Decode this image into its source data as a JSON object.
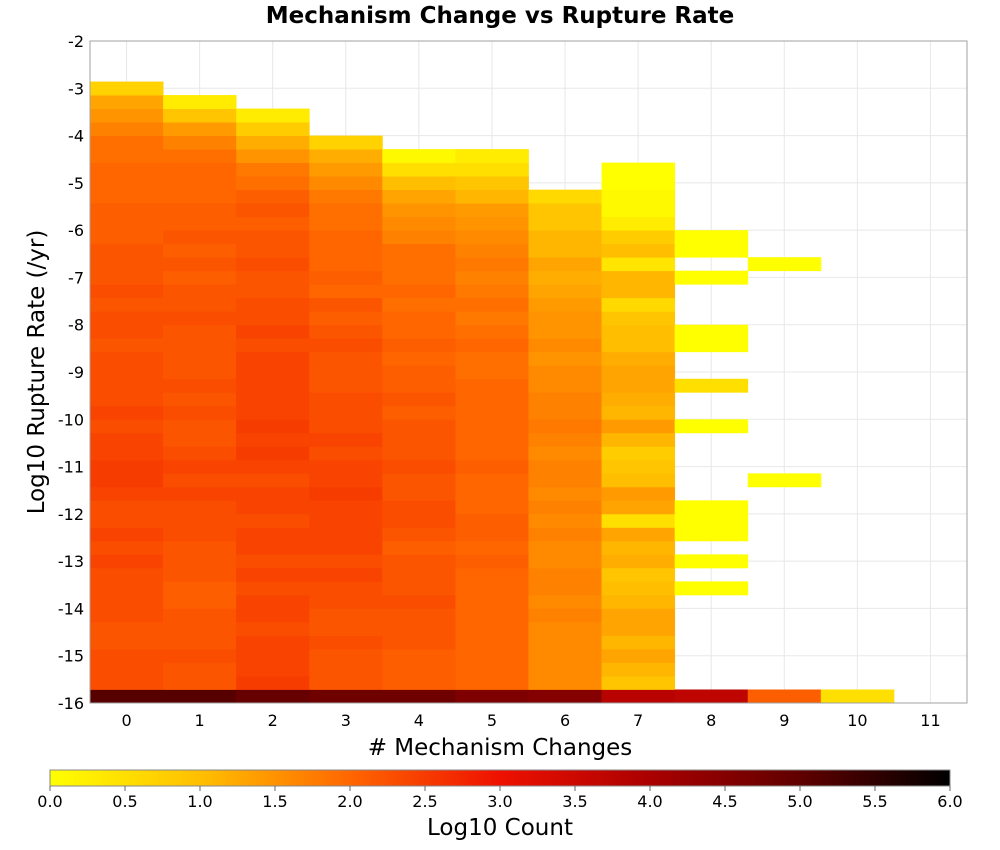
{
  "chart_data": {
    "type": "heatmap",
    "title": "Mechanism Change vs Rupture Rate",
    "xlabel": "# Mechanism Changes",
    "ylabel": "Log10 Rupture Rate (/yr)",
    "xlim": [
      -0.5,
      11.5
    ],
    "ylim": [
      -16,
      -2
    ],
    "x_ticks": [
      "0",
      "1",
      "2",
      "3",
      "4",
      "5",
      "6",
      "7",
      "8",
      "9",
      "10",
      "11"
    ],
    "y_ticks": [
      "-2",
      "-3",
      "-4",
      "-5",
      "-6",
      "-7",
      "-8",
      "-9",
      "-10",
      "-11",
      "-12",
      "-13",
      "-14",
      "-15",
      "-16"
    ],
    "grid": true,
    "y_bin_width": 0.2857,
    "colorbar": {
      "label": "Log10 Count",
      "range": [
        0.0,
        6.0
      ],
      "ticks": [
        "0.0",
        "0.5",
        "1.0",
        "1.5",
        "2.0",
        "2.5",
        "3.0",
        "3.5",
        "4.0",
        "4.5",
        "5.0",
        "5.5",
        "6.0"
      ],
      "stops": [
        {
          "value": 0.0,
          "color": "#ffff00"
        },
        {
          "value": 1.0,
          "color": "#ffbf00"
        },
        {
          "value": 2.0,
          "color": "#ff6600"
        },
        {
          "value": 3.0,
          "color": "#ee1100"
        },
        {
          "value": 4.0,
          "color": "#aa0000"
        },
        {
          "value": 5.0,
          "color": "#600000"
        },
        {
          "value": 6.0,
          "color": "#000000"
        }
      ]
    },
    "columns": [
      {
        "x": 0,
        "values": [
          5.1,
          2.3,
          2.3,
          2.3,
          2.2,
          2.2,
          2.3,
          2.3,
          2.3,
          2.3,
          2.4,
          2.3,
          2.4,
          2.3,
          2.3,
          2.4,
          2.5,
          2.5,
          2.4,
          2.4,
          2.3,
          2.4,
          2.3,
          2.3,
          2.3,
          2.3,
          2.2,
          2.3,
          2.3,
          2.2,
          2.3,
          2.2,
          2.2,
          2.2,
          2.1,
          2.1,
          2.1,
          2.0,
          2.0,
          2.0,
          1.9,
          1.9,
          1.7,
          1.5,
          1.3,
          0.7
        ]
      },
      {
        "x": 1,
        "values": [
          5.1,
          2.2,
          2.2,
          2.3,
          2.2,
          2.2,
          2.2,
          2.1,
          2.1,
          2.2,
          2.2,
          2.2,
          2.3,
          2.3,
          2.3,
          2.4,
          2.3,
          2.4,
          2.3,
          2.2,
          2.2,
          2.3,
          2.2,
          2.3,
          2.2,
          2.2,
          2.2,
          2.2,
          2.3,
          2.2,
          2.2,
          2.1,
          2.2,
          2.1,
          2.2,
          2.1,
          2.1,
          2.0,
          2.0,
          2.0,
          1.9,
          1.7,
          1.4,
          0.9,
          0.3
        ]
      },
      {
        "x": 2,
        "values": [
          4.9,
          2.5,
          2.4,
          2.4,
          2.4,
          2.3,
          2.4,
          2.4,
          2.3,
          2.4,
          2.3,
          2.4,
          2.4,
          2.3,
          2.4,
          2.4,
          2.3,
          2.4,
          2.5,
          2.4,
          2.5,
          2.4,
          2.4,
          2.4,
          2.4,
          2.4,
          2.3,
          2.4,
          2.3,
          2.3,
          2.2,
          2.2,
          2.3,
          2.2,
          2.2,
          2.1,
          2.2,
          2.1,
          1.9,
          1.8,
          1.5,
          1.2,
          0.8,
          0.3
        ]
      },
      {
        "x": 3,
        "values": [
          4.8,
          2.2,
          2.2,
          2.2,
          2.3,
          2.2,
          2.2,
          2.3,
          2.3,
          2.4,
          2.3,
          2.4,
          2.4,
          2.4,
          2.4,
          2.5,
          2.4,
          2.4,
          2.3,
          2.4,
          2.3,
          2.3,
          2.3,
          2.2,
          2.2,
          2.2,
          2.3,
          2.2,
          2.1,
          2.2,
          2.0,
          2.1,
          2.0,
          2.0,
          2.0,
          1.9,
          1.9,
          1.8,
          1.6,
          1.4,
          1.2,
          0.7
        ]
      },
      {
        "x": 4,
        "values": [
          4.8,
          2.1,
          2.1,
          2.1,
          2.2,
          2.2,
          2.2,
          2.3,
          2.2,
          2.2,
          2.2,
          2.1,
          2.2,
          2.3,
          2.3,
          2.2,
          2.2,
          2.3,
          2.2,
          2.2,
          2.2,
          2.1,
          2.2,
          2.1,
          2.1,
          2.0,
          2.1,
          2.0,
          2.0,
          1.9,
          2.0,
          1.9,
          1.9,
          1.9,
          1.7,
          1.6,
          1.5,
          1.3,
          1.0,
          0.5,
          0.1
        ]
      },
      {
        "x": 5,
        "values": [
          4.6,
          2.0,
          2.0,
          2.0,
          2.0,
          2.0,
          2.0,
          2.0,
          2.0,
          2.0,
          2.1,
          2.0,
          2.1,
          2.1,
          2.0,
          2.0,
          2.0,
          2.1,
          2.0,
          2.0,
          2.0,
          2.0,
          2.0,
          2.0,
          1.9,
          1.9,
          2.0,
          1.9,
          1.8,
          1.9,
          1.8,
          1.7,
          1.8,
          1.7,
          1.6,
          1.5,
          1.4,
          1.1,
          0.9,
          0.5,
          0.3
        ]
      },
      {
        "x": 6,
        "values": [
          4.5,
          1.6,
          1.6,
          1.6,
          1.6,
          1.6,
          1.7,
          1.6,
          1.7,
          1.7,
          1.6,
          1.6,
          1.7,
          1.6,
          1.7,
          1.6,
          1.7,
          1.7,
          1.6,
          1.7,
          1.8,
          1.7,
          1.7,
          1.6,
          1.6,
          1.5,
          1.6,
          1.5,
          1.5,
          1.4,
          1.3,
          1.2,
          1.3,
          1.1,
          1.1,
          0.9,
          0.9,
          0.6
        ]
      },
      {
        "x": 7,
        "values": [
          3.8,
          0.9,
          1.1,
          1.3,
          1.1,
          1.3,
          1.3,
          1.1,
          1.0,
          0.9,
          1.2,
          1.1,
          1.3,
          0.5,
          1.3,
          1.4,
          1.0,
          0.9,
          0.8,
          1.1,
          1.4,
          1.1,
          1.2,
          1.3,
          1.3,
          1.2,
          1.0,
          1.0,
          0.9,
          0.6,
          1.1,
          1.1,
          0.4,
          1.0,
          0.8,
          0.3,
          0.1,
          0.1,
          0.0,
          0.0
        ]
      },
      {
        "x": 8,
        "values": [
          3.7,
          null,
          null,
          null,
          null,
          null,
          null,
          null,
          0.0,
          null,
          0.0,
          null,
          0.0,
          0.0,
          0.0,
          null,
          null,
          null,
          null,
          null,
          0.0,
          null,
          null,
          0.5,
          null,
          null,
          0.0,
          0.0,
          null,
          null,
          null,
          0.0,
          null,
          0.0,
          0.0,
          null,
          null
        ]
      },
      {
        "x": 9,
        "values": [
          2.1,
          null,
          null,
          null,
          null,
          null,
          null,
          null,
          null,
          null,
          null,
          null,
          null,
          null,
          null,
          null,
          0.0,
          null,
          null,
          null,
          null,
          null,
          null,
          null,
          null,
          null,
          null,
          null,
          null,
          null,
          null,
          null,
          0.0
        ]
      },
      {
        "x": 10,
        "values": [
          0.5
        ]
      }
    ]
  }
}
